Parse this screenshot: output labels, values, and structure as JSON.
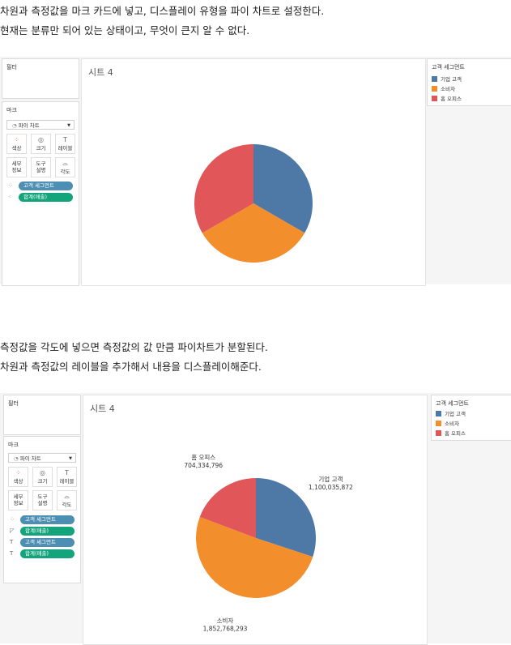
{
  "text1": {
    "line1": "차원과 측정값을 마크 카드에 넣고, 디스플레이 유형을 파이 차트로 설정한다.",
    "line2": "현재는 분류만 되어 있는 상태이고, 무엇이 큰지 알 수 없다."
  },
  "text2": {
    "line1": "측정값을 각도에 넣으면 측정값의 값 만큼 파이차트가 분할된다.",
    "line2": "차원과 측정값의 레이블을 추가해서 내용을 디스플레이해준다."
  },
  "colors": {
    "corporate": "#4e79a7",
    "consumer": "#f28e2b",
    "home_office": "#e15759",
    "pill_blue": "#4d8fb2",
    "pill_green": "#13a47c"
  },
  "screenshot1": {
    "filters_title": "필터",
    "marks_title": "마크",
    "mark_type": "파이 차트",
    "buttons": {
      "color": "색상",
      "size": "크기",
      "label": "레이블",
      "detail_1": "세부",
      "detail_2": "정보",
      "tooltip_1": "도구",
      "tooltip_2": "설명",
      "angle": "각도"
    },
    "pills": [
      "고객 세그먼트",
      "합계(매출)"
    ],
    "sheet_title": "시트 4",
    "legend_title": "고객 세그먼트",
    "legend_items": [
      "기업 고객",
      "소비자",
      "홈 오피스"
    ]
  },
  "screenshot2": {
    "filters_title": "필터",
    "marks_title": "마크",
    "mark_type": "파이 차트",
    "buttons": {
      "color": "색상",
      "size": "크기",
      "label": "레이블",
      "detail_1": "세부",
      "detail_2": "정보",
      "tooltip_1": "도구",
      "tooltip_2": "설명",
      "angle": "각도"
    },
    "pills": [
      "고객 세그먼트",
      "합계(매출)",
      "고객 세그먼트",
      "합계(매출)"
    ],
    "sheet_title": "시트 4",
    "legend_title": "고객 세그먼트",
    "legend_items": [
      "기업 고객",
      "소비자",
      "홈 오피스"
    ],
    "labels": [
      {
        "name": "기업 고객",
        "value": "1,100,035,872"
      },
      {
        "name": "소비자",
        "value": "1,852,768,293"
      },
      {
        "name": "홈 오피스",
        "value": "704,334,796"
      }
    ]
  },
  "chart_data": [
    {
      "type": "pie",
      "title": "시트 4",
      "categories": [
        "기업 고객",
        "소비자",
        "홈 오피스"
      ],
      "values": [
        1,
        1,
        1
      ],
      "legend": "right"
    },
    {
      "type": "pie",
      "title": "시트 4",
      "categories": [
        "기업 고객",
        "소비자",
        "홈 오피스"
      ],
      "values": [
        1100035872,
        1852768293,
        704334796
      ],
      "legend": "right"
    }
  ]
}
